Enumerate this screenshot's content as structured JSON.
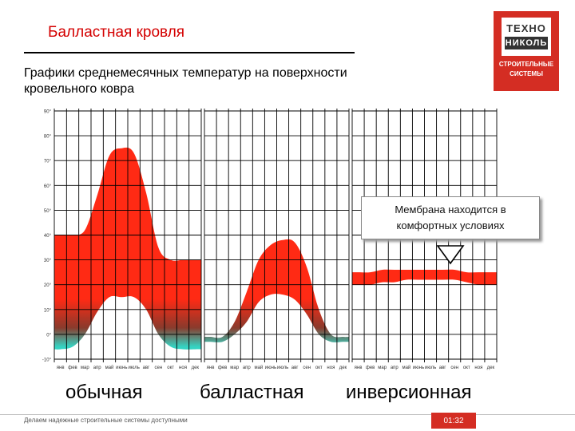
{
  "header": {
    "title": "Балластная кровля",
    "subtitle_line1": "Графики среднемесячных температур на поверхности",
    "subtitle_line2": "кровельного ковра"
  },
  "logo": {
    "line1": "ТЕХНО",
    "line2": "НИКОЛЬ",
    "tagline1": "СТРОИТЕЛЬНЫЕ",
    "tagline2": "СИСТЕМЫ"
  },
  "callout": {
    "line1": "Мембрана находится в",
    "line2": "комфортных условиях"
  },
  "categories": [
    "обычная",
    "балластная",
    "инверсионная"
  ],
  "footer": {
    "text": "Делаем надежные строительные системы доступными",
    "page": "01:32"
  },
  "colors": {
    "hot": "#ff2a14",
    "cold": "#35d3c2",
    "accent": "#d42d23"
  },
  "chart_data": {
    "type": "area",
    "y_ticks": [
      "90°",
      "80°",
      "70°",
      "60°",
      "50°",
      "40°",
      "30°",
      "20°",
      "10°",
      "0°",
      "-10°"
    ],
    "ylim": [
      -10,
      90
    ],
    "months": [
      "янв",
      "фев",
      "мар",
      "апр",
      "май",
      "июнь",
      "июль",
      "авг",
      "сен",
      "окт",
      "ноя",
      "дек"
    ],
    "grid": true,
    "series": [
      {
        "max": [
          40,
          40,
          42,
          56,
          72,
          75,
          73,
          57,
          35,
          30,
          30,
          30
        ],
        "min": [
          -6,
          -5,
          0,
          9,
          15,
          15,
          15,
          10,
          0,
          -5,
          -6,
          -6
        ]
      },
      {
        "max": [
          -1,
          -1,
          5,
          17,
          30,
          36,
          38,
          37,
          27,
          10,
          0,
          -1
        ],
        "min": [
          -3,
          -3,
          0,
          5,
          13,
          16,
          16,
          14,
          8,
          0,
          -3,
          -3
        ]
      },
      {
        "max": [
          25,
          25,
          26,
          26,
          26,
          26,
          26,
          26,
          26,
          25,
          25,
          25
        ],
        "min": [
          20,
          20,
          21,
          21,
          22,
          22,
          22,
          22,
          22,
          21,
          20,
          20
        ]
      }
    ]
  }
}
